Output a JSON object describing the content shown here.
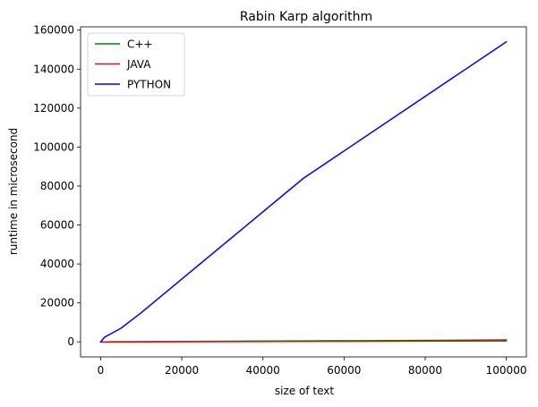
{
  "chart_data": {
    "type": "line",
    "title": "Rabin Karp algorithm",
    "xlabel": "size of text",
    "ylabel": "runtime in microsecond",
    "xlim": [
      -4950,
      104950
    ],
    "ylim": [
      -7700,
      161700
    ],
    "xticks": [
      0,
      20000,
      40000,
      60000,
      80000,
      100000
    ],
    "yticks": [
      0,
      20000,
      40000,
      60000,
      80000,
      100000,
      120000,
      140000,
      160000
    ],
    "grid": false,
    "legend_position": "upper left",
    "series": [
      {
        "name": "C++",
        "color": "#008000",
        "x": [
          0,
          1000,
          5000,
          10000,
          50000,
          100000
        ],
        "y": [
          0,
          10,
          50,
          100,
          500,
          1000
        ]
      },
      {
        "name": "JAVA",
        "color": "#ff0000",
        "x": [
          0,
          1000,
          5000,
          10000,
          50000,
          100000
        ],
        "y": [
          0,
          5,
          30,
          60,
          250,
          500
        ]
      },
      {
        "name": "PYTHON",
        "color": "#0000ff",
        "x": [
          0,
          1000,
          5000,
          10000,
          50000,
          100000
        ],
        "y": [
          0,
          2500,
          7000,
          15000,
          84000,
          154000
        ]
      }
    ]
  }
}
